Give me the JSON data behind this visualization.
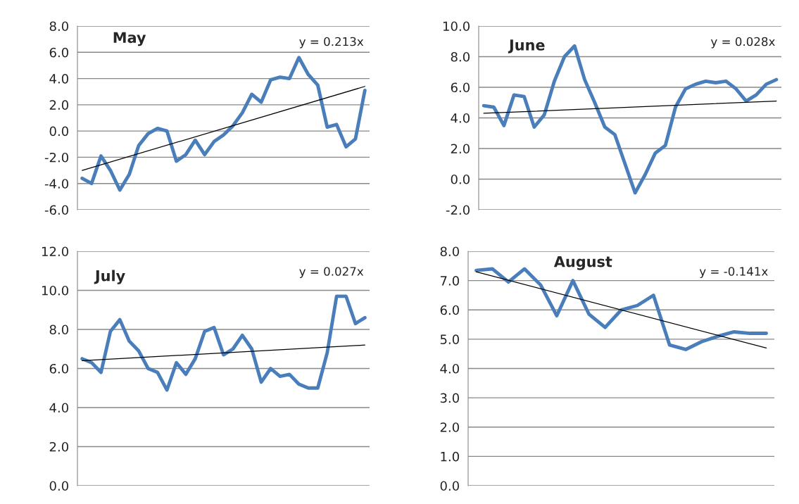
{
  "chart_data": [
    {
      "type": "line",
      "title": "May",
      "categories": [
        null,
        null,
        null,
        null,
        null,
        null,
        null,
        null,
        null,
        null,
        null,
        null,
        null,
        null,
        null,
        null,
        null,
        null,
        null,
        null,
        null,
        null,
        null,
        null,
        null,
        null,
        null,
        null,
        null,
        null,
        null
      ],
      "tick_labels": "y",
      "grid": "y",
      "ylim": [
        -6.0,
        8.0
      ],
      "yticks": [
        {
          "value": -6,
          "label": "-6.0"
        },
        {
          "value": -4,
          "label": "-4.0"
        },
        {
          "value": -2,
          "label": "-2.0"
        },
        {
          "value": 0,
          "label": "0.0"
        },
        {
          "value": 2,
          "label": "2.0"
        },
        {
          "value": 4,
          "label": "4.0"
        },
        {
          "value": 6,
          "label": "6.0"
        },
        {
          "value": 8,
          "label": "8.0"
        }
      ],
      "annotations": [
        "y = 0.213x"
      ],
      "series": [
        {
          "color": "#4a7ebb",
          "values": [
            -3.6,
            -4.0,
            -1.9,
            -3.0,
            -4.5,
            -3.3,
            -1.1,
            -0.2,
            0.2,
            0.0,
            -2.3,
            -1.8,
            -0.7,
            -1.8,
            -0.8,
            -0.3,
            0.4,
            1.4,
            2.8,
            2.2,
            3.9,
            4.1,
            4.0,
            5.6,
            4.3,
            3.5,
            0.3,
            0.5,
            -1.2,
            -0.6,
            3.1
          ]
        },
        {
          "type": "line",
          "color": "#000000",
          "values": [
            -3.0,
            null,
            null,
            null,
            null,
            null,
            null,
            null,
            null,
            null,
            null,
            null,
            null,
            null,
            null,
            null,
            null,
            null,
            null,
            null,
            null,
            null,
            null,
            null,
            null,
            null,
            null,
            null,
            null,
            null,
            3.4
          ]
        }
      ]
    },
    {
      "type": "line",
      "title": "June",
      "categories": [
        null,
        null,
        null,
        null,
        null,
        null,
        null,
        null,
        null,
        null,
        null,
        null,
        null,
        null,
        null,
        null,
        null,
        null,
        null,
        null,
        null,
        null,
        null,
        null,
        null,
        null,
        null,
        null,
        null,
        null
      ],
      "tick_labels": "y",
      "grid": "y",
      "ylim": [
        -2.0,
        10.0
      ],
      "yticks": [
        {
          "value": -2,
          "label": "-2.0"
        },
        {
          "value": 0,
          "label": "0.0"
        },
        {
          "value": 2,
          "label": "2.0"
        },
        {
          "value": 4,
          "label": "4.0"
        },
        {
          "value": 6,
          "label": "6.0"
        },
        {
          "value": 8,
          "label": "8.0"
        },
        {
          "value": 10,
          "label": "10.0"
        }
      ],
      "annotations": [
        "y = 0.028x"
      ],
      "series": [
        {
          "color": "#4a7ebb",
          "values": [
            4.8,
            4.7,
            3.5,
            5.5,
            5.4,
            3.4,
            4.2,
            6.4,
            8.0,
            8.7,
            6.5,
            5.0,
            3.4,
            2.9,
            1.0,
            -0.9,
            0.3,
            1.7,
            2.2,
            4.7,
            5.9,
            6.2,
            6.4,
            6.3,
            6.4,
            5.9,
            5.1,
            5.5,
            6.2,
            6.5
          ]
        },
        {
          "type": "line",
          "color": "#000000",
          "values": [
            4.3,
            null,
            null,
            null,
            null,
            null,
            null,
            null,
            null,
            null,
            null,
            null,
            null,
            null,
            null,
            null,
            null,
            null,
            null,
            null,
            null,
            null,
            null,
            null,
            null,
            null,
            null,
            null,
            null,
            5.1
          ]
        }
      ]
    },
    {
      "type": "line",
      "title": "July",
      "categories": [
        null,
        null,
        null,
        null,
        null,
        null,
        null,
        null,
        null,
        null,
        null,
        null,
        null,
        null,
        null,
        null,
        null,
        null,
        null,
        null,
        null,
        null,
        null,
        null,
        null,
        null,
        null,
        null,
        null,
        null,
        null
      ],
      "tick_labels": "y",
      "grid": "y",
      "ylim": [
        0.0,
        12.0
      ],
      "yticks": [
        {
          "value": 0,
          "label": "0.0"
        },
        {
          "value": 2,
          "label": "2.0"
        },
        {
          "value": 4,
          "label": "4.0"
        },
        {
          "value": 6,
          "label": "6.0"
        },
        {
          "value": 8,
          "label": "8.0"
        },
        {
          "value": 10,
          "label": "10.0"
        },
        {
          "value": 12,
          "label": "12.0"
        }
      ],
      "annotations": [
        "y = 0.027x"
      ],
      "series": [
        {
          "color": "#4a7ebb",
          "values": [
            6.5,
            6.3,
            5.8,
            7.9,
            8.5,
            7.4,
            6.9,
            6.0,
            5.8,
            4.9,
            6.3,
            5.7,
            6.5,
            7.9,
            8.1,
            6.7,
            7.0,
            7.7,
            7.0,
            5.3,
            6.0,
            5.6,
            5.7,
            5.2,
            5.0,
            5.0,
            6.8,
            9.7,
            9.7,
            8.3,
            8.6
          ]
        },
        {
          "type": "line",
          "color": "#000000",
          "values": [
            6.4,
            null,
            null,
            null,
            null,
            null,
            null,
            null,
            null,
            null,
            null,
            null,
            null,
            null,
            null,
            null,
            null,
            null,
            null,
            null,
            null,
            null,
            null,
            null,
            null,
            null,
            null,
            null,
            null,
            null,
            7.2
          ]
        }
      ]
    },
    {
      "type": "line",
      "title": "August",
      "categories": [
        null,
        null,
        null,
        null,
        null,
        null,
        null,
        null,
        null,
        null,
        null,
        null,
        null,
        null,
        null,
        null,
        null,
        null,
        null
      ],
      "tick_labels": "y",
      "grid": "y",
      "ylim": [
        0.0,
        8.0
      ],
      "yticks": [
        {
          "value": 0,
          "label": "0.0"
        },
        {
          "value": 1,
          "label": "1.0"
        },
        {
          "value": 2,
          "label": "2.0"
        },
        {
          "value": 3,
          "label": "3.0"
        },
        {
          "value": 4,
          "label": "4.0"
        },
        {
          "value": 5,
          "label": "5.0"
        },
        {
          "value": 6,
          "label": "6.0"
        },
        {
          "value": 7,
          "label": "7.0"
        },
        {
          "value": 8,
          "label": "8.0"
        }
      ],
      "annotations": [
        "y = -0.141x"
      ],
      "series": [
        {
          "color": "#4a7ebb",
          "values": [
            7.35,
            7.4,
            6.95,
            7.4,
            6.85,
            5.8,
            7.0,
            5.85,
            5.4,
            6.0,
            6.15,
            6.5,
            4.8,
            4.65,
            4.92,
            5.1,
            5.25,
            5.2,
            5.2
          ]
        },
        {
          "type": "line",
          "color": "#000000",
          "values": [
            7.3,
            null,
            null,
            null,
            null,
            null,
            null,
            null,
            null,
            null,
            null,
            null,
            null,
            null,
            null,
            null,
            null,
            null,
            4.7
          ]
        }
      ]
    }
  ]
}
